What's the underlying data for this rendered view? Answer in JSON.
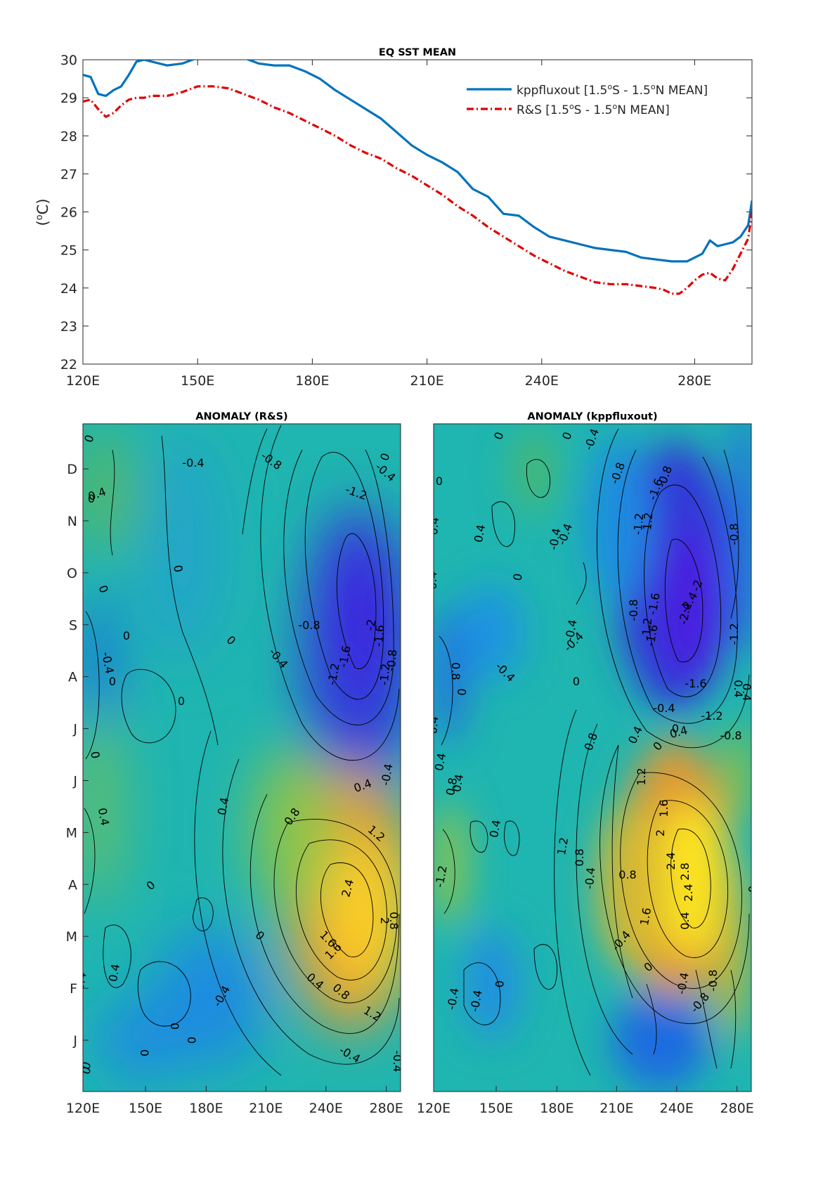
{
  "chart_data": [
    {
      "type": "line",
      "title": "EQ SST MEAN",
      "ylabel_base": "(",
      "ylabel_sup": "o",
      "ylabel_unit": "C)",
      "xlim": [
        120,
        295
      ],
      "ylim": [
        22,
        30
      ],
      "xticks": [
        120,
        150,
        180,
        210,
        240,
        280
      ],
      "xticklabels": [
        "120E",
        "150E",
        "180E",
        "210E",
        "240E",
        "280E"
      ],
      "yticks": [
        22,
        23,
        24,
        25,
        26,
        27,
        28,
        29,
        30
      ],
      "yticklabels": [
        "22",
        "23",
        "24",
        "25",
        "26",
        "27",
        "28",
        "29",
        "30"
      ],
      "legend_position": "top-right",
      "series": [
        {
          "name_parts": [
            "kppfluxout [1.5",
            "o",
            "S - 1.5",
            "o",
            "N MEAN]"
          ],
          "color": "#0072BD",
          "style": "solid",
          "x": [
            120,
            122,
            124,
            126,
            128,
            130,
            132,
            134,
            136,
            138,
            142,
            146,
            150,
            154,
            158,
            162,
            166,
            170,
            174,
            178,
            182,
            186,
            190,
            194,
            198,
            202,
            206,
            210,
            214,
            218,
            222,
            226,
            230,
            234,
            238,
            242,
            246,
            250,
            254,
            258,
            262,
            266,
            270,
            274,
            278,
            280,
            282,
            284,
            286,
            288,
            290,
            292,
            294,
            295
          ],
          "y": [
            29.6,
            29.55,
            29.1,
            29.05,
            29.2,
            29.3,
            29.6,
            29.95,
            30.0,
            29.95,
            29.85,
            29.9,
            30.05,
            30.1,
            30.1,
            30.05,
            29.9,
            29.85,
            29.85,
            29.7,
            29.5,
            29.2,
            28.95,
            28.7,
            28.45,
            28.1,
            27.75,
            27.5,
            27.3,
            27.05,
            26.6,
            26.4,
            25.95,
            25.9,
            25.6,
            25.35,
            25.25,
            25.15,
            25.05,
            25.0,
            24.95,
            24.8,
            24.75,
            24.7,
            24.7,
            24.8,
            24.9,
            25.25,
            25.1,
            25.15,
            25.2,
            25.35,
            25.65,
            26.3
          ]
        },
        {
          "name_parts": [
            "R&S [1.5",
            "o",
            "S - 1.5",
            "o",
            "N MEAN]"
          ],
          "color": "#E00000",
          "style": "dashdot",
          "x": [
            120,
            122,
            124,
            126,
            128,
            130,
            132,
            134,
            136,
            138,
            142,
            146,
            150,
            154,
            158,
            162,
            166,
            170,
            174,
            178,
            182,
            186,
            190,
            194,
            198,
            202,
            206,
            210,
            214,
            218,
            222,
            226,
            230,
            234,
            238,
            242,
            246,
            250,
            254,
            258,
            262,
            266,
            270,
            272,
            274,
            276,
            278,
            280,
            282,
            284,
            286,
            288,
            290,
            292,
            294,
            295
          ],
          "y": [
            28.9,
            28.95,
            28.7,
            28.5,
            28.6,
            28.8,
            28.95,
            29.0,
            29.0,
            29.05,
            29.05,
            29.15,
            29.3,
            29.3,
            29.25,
            29.1,
            28.95,
            28.75,
            28.6,
            28.4,
            28.2,
            28.0,
            27.75,
            27.55,
            27.4,
            27.15,
            26.95,
            26.7,
            26.45,
            26.15,
            25.9,
            25.6,
            25.35,
            25.1,
            24.85,
            24.65,
            24.45,
            24.3,
            24.15,
            24.1,
            24.1,
            24.05,
            24.0,
            23.95,
            23.85,
            23.85,
            24.0,
            24.2,
            24.35,
            24.4,
            24.25,
            24.2,
            24.5,
            24.9,
            25.3,
            26.0
          ]
        }
      ]
    },
    {
      "type": "heatmap",
      "title": "ANOMALY (R&S)",
      "xticklabels": [
        "120E",
        "150E",
        "180E",
        "210E",
        "240E",
        "280E"
      ],
      "yticklabels": [
        "J",
        "F",
        "M",
        "A",
        "M",
        "J",
        "J",
        "A",
        "S",
        "O",
        "N",
        "D"
      ],
      "contour_labels": [
        "0",
        "0",
        "-0.4",
        "-0.8",
        "0",
        "0.4",
        "-1.2",
        "-0.4",
        "0",
        "0",
        "-2",
        "-1.6",
        "-0.8",
        "0",
        "0",
        "-0.4",
        "-1.6",
        "-1.2",
        "-1.2",
        "-0.8",
        "-0.4",
        "0",
        "0",
        "0",
        "-0.4",
        "0.4",
        "0.8",
        "0.4",
        "1.2",
        "0.4",
        "2.4",
        "0",
        "0",
        "1.6",
        "0.8",
        "1.6",
        "2",
        "0.4",
        "-0.4",
        "0.4",
        "0.8",
        "1.2",
        "-0.4",
        "-0.4",
        "0",
        "0",
        "0",
        "0",
        "-0.4",
        "0"
      ]
    },
    {
      "type": "heatmap",
      "title": "ANOMALY (kppfluxout)",
      "xticklabels": [
        "120E",
        "150E",
        "180E",
        "210E",
        "240E",
        "280E"
      ],
      "contour_labels": [
        "0",
        "0",
        "-0.4",
        "-0.8",
        "-1.6",
        "-0.8",
        "-1.2",
        "-1.2",
        "-1.6",
        "-0.8",
        "-0.4",
        "0",
        "0.4",
        "0.4",
        "-0.4",
        "-1.2",
        "-2.4",
        "-2",
        "-2.4",
        "-1.6",
        "0.4",
        "0",
        "-0.8",
        "-0.4",
        "-1.2",
        "-0.4",
        "0.8",
        "-0.4",
        "0",
        "-1.6",
        "0",
        "-0.4",
        "0.4",
        "-1.2",
        "-0.8",
        "0.4",
        "0",
        "0.4",
        "0.8",
        "0.4",
        "0",
        "-0.4",
        "0.4",
        "0.8",
        "1.2",
        "0.4",
        "-1.2",
        "1.6",
        "2",
        "1.2",
        "2.4",
        "2.8",
        "2.4",
        "0.8",
        "1.6",
        "0.4",
        "0.8",
        "-0.4",
        "0.4",
        "-0.4",
        "0",
        "-0.4",
        "0",
        "-0.8",
        "-0.4",
        "0",
        "-0.4",
        "-0.8"
      ]
    }
  ]
}
